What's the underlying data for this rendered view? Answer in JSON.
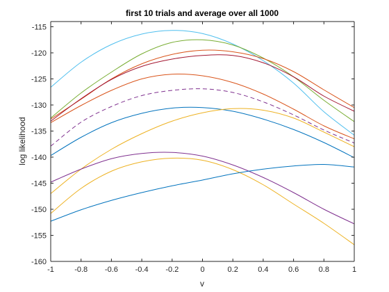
{
  "chart_data": {
    "type": "line",
    "title": "first 10 trials and average over all 1000",
    "xlabel": "v",
    "ylabel": "log likelihood",
    "xlim": [
      -1,
      1
    ],
    "ylim": [
      -160,
      -114
    ],
    "x_ticks": [
      "-1",
      "-0.8",
      "-0.6",
      "-0.4",
      "-0.2",
      "0",
      "0.2",
      "0.4",
      "0.6",
      "0.8",
      "1"
    ],
    "y_ticks": [
      "-160",
      "-155",
      "-150",
      "-145",
      "-140",
      "-135",
      "-130",
      "-125",
      "-120",
      "-115"
    ],
    "grid": false,
    "x": [
      -1,
      -0.8,
      -0.6,
      -0.4,
      -0.2,
      0,
      0.2,
      0.4,
      0.6,
      0.8,
      1
    ],
    "series": [
      {
        "color": "#4DBEEE",
        "dashed": false,
        "values": [
          -126.6,
          -121.8,
          -118.4,
          -116.4,
          -115.7,
          -116.3,
          -118.3,
          -121.5,
          -125.8,
          -131.3,
          -135.8
        ]
      },
      {
        "color": "#77AC30",
        "dashed": false,
        "values": [
          -132.5,
          -127.7,
          -123.7,
          -120.2,
          -118.0,
          -117.5,
          -118.5,
          -121.0,
          -124.6,
          -129.1,
          -133.2
        ]
      },
      {
        "color": "#D95319",
        "dashed": false,
        "values": [
          -132.7,
          -128.9,
          -125.0,
          -122.1,
          -120.3,
          -119.5,
          -119.8,
          -121.1,
          -123.6,
          -127.1,
          -130.5
        ]
      },
      {
        "color": "#A2142F",
        "dashed": false,
        "values": [
          -133.1,
          -128.8,
          -125.1,
          -122.6,
          -121.2,
          -120.5,
          -120.5,
          -121.9,
          -124.6,
          -128.3,
          -131.2
        ]
      },
      {
        "color": "#D95319",
        "dashed": false,
        "values": [
          -133.4,
          -130.1,
          -127.2,
          -125.0,
          -124.1,
          -124.4,
          -125.7,
          -127.9,
          -130.8,
          -134.0,
          -136.5
        ]
      },
      {
        "color": "#7E2F8E",
        "dashed": true,
        "values": [
          -137.9,
          -133.3,
          -130.3,
          -128.2,
          -127.2,
          -126.9,
          -127.6,
          -129.4,
          -131.9,
          -134.8,
          -137.3
        ]
      },
      {
        "color": "#0072BD",
        "dashed": false,
        "values": [
          -139.7,
          -136.2,
          -133.4,
          -131.6,
          -130.6,
          -130.5,
          -131.2,
          -132.7,
          -134.7,
          -137.2,
          -140.1
        ]
      },
      {
        "color": "#EDB120",
        "dashed": false,
        "values": [
          -147.0,
          -142.3,
          -138.5,
          -135.5,
          -133.1,
          -131.5,
          -130.7,
          -131.0,
          -132.5,
          -135.2,
          -138.0
        ]
      },
      {
        "color": "#7E2F8E",
        "dashed": false,
        "values": [
          -144.8,
          -142.3,
          -140.3,
          -139.3,
          -139.1,
          -139.8,
          -141.5,
          -143.9,
          -146.8,
          -150.0,
          -152.8
        ]
      },
      {
        "color": "#EDB120",
        "dashed": false,
        "values": [
          -150.8,
          -146.0,
          -142.7,
          -140.9,
          -140.2,
          -140.6,
          -142.4,
          -145.3,
          -149.0,
          -152.7,
          -156.8
        ]
      },
      {
        "color": "#0072BD",
        "dashed": false,
        "values": [
          -152.3,
          -150.1,
          -148.3,
          -146.8,
          -145.5,
          -144.4,
          -143.2,
          -142.3,
          -141.7,
          -141.4,
          -141.9
        ]
      }
    ]
  }
}
